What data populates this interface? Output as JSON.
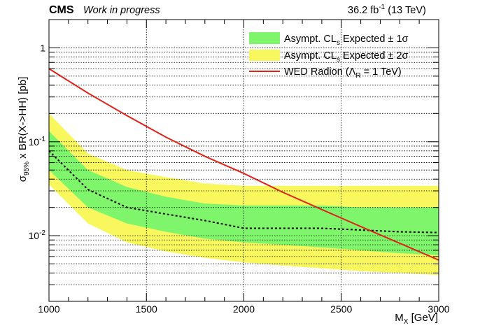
{
  "header": {
    "experiment": "CMS",
    "status": "Work in progress",
    "lumi_value": "36.2 fb",
    "lumi_exp": "-1",
    "lumi_energy": " (13 TeV)"
  },
  "axes": {
    "xlabel_main": "M",
    "xlabel_sub": "X",
    "xlabel_unit": " [GeV]",
    "ylabel_main": "σ",
    "ylabel_sub": "95%",
    "ylabel_rest": " x BR(X->HH) [pb]"
  },
  "legend": {
    "band1_pre": "Asympt. CL",
    "band1_sub": "s",
    "band1_post": " Expected ± 1σ",
    "band2_pre": "Asympt. CL",
    "band2_sub": "s",
    "band2_post": " Expected ± 2σ",
    "radion_pre": "WED Radion (Λ",
    "radion_sub": "R",
    "radion_post": " = 1 TeV)"
  },
  "colors": {
    "band1": "#7ef56a",
    "band2": "#f8f85e",
    "radion": "#e0231a",
    "median": "#000000",
    "grid": "#000000"
  },
  "chart_data": {
    "type": "line",
    "x_scale": "linear",
    "y_scale": "log",
    "xlim": [
      1000,
      3000
    ],
    "ylim": [
      0.002,
      2.0
    ],
    "grid": true,
    "legend_position": "top-right",
    "x": [
      1000,
      1200,
      1400,
      1600,
      1800,
      2000,
      2200,
      2400,
      2600,
      2800,
      3000
    ],
    "x_ticks": [
      {
        "value": 1000,
        "label": "1000"
      },
      {
        "value": 1500,
        "label": "1500"
      },
      {
        "value": 2000,
        "label": "2000"
      },
      {
        "value": 2500,
        "label": "2500"
      },
      {
        "value": 3000,
        "label": "3000"
      }
    ],
    "y_ticks": [
      {
        "value": 0.01,
        "base": "10",
        "exp": "-2"
      },
      {
        "value": 0.1,
        "base": "10",
        "exp": "-1"
      },
      {
        "value": 1,
        "base": "1",
        "exp": ""
      }
    ],
    "series": [
      {
        "role": "band2_upper",
        "values": [
          0.2,
          0.075,
          0.05,
          0.042,
          0.036,
          0.034,
          0.034,
          0.034,
          0.034,
          0.034,
          0.034
        ]
      },
      {
        "role": "band2_lower",
        "values": [
          0.035,
          0.0135,
          0.0085,
          0.0068,
          0.0058,
          0.0052,
          0.0048,
          0.0045,
          0.0042,
          0.004,
          0.0038
        ]
      },
      {
        "role": "band1_upper",
        "values": [
          0.13,
          0.05,
          0.033,
          0.026,
          0.022,
          0.021,
          0.021,
          0.021,
          0.02,
          0.02,
          0.02
        ]
      },
      {
        "role": "band1_lower",
        "values": [
          0.05,
          0.02,
          0.0135,
          0.011,
          0.0093,
          0.0085,
          0.008,
          0.0075,
          0.007,
          0.0065,
          0.0062
        ]
      },
      {
        "role": "expected_median",
        "values": [
          0.08,
          0.031,
          0.02,
          0.017,
          0.0145,
          0.012,
          0.012,
          0.012,
          0.0115,
          0.011,
          0.0108
        ]
      },
      {
        "role": "radion",
        "values": [
          0.6,
          0.33,
          0.19,
          0.112,
          0.07,
          0.046,
          0.029,
          0.019,
          0.0125,
          0.0083,
          0.0055
        ]
      }
    ]
  }
}
